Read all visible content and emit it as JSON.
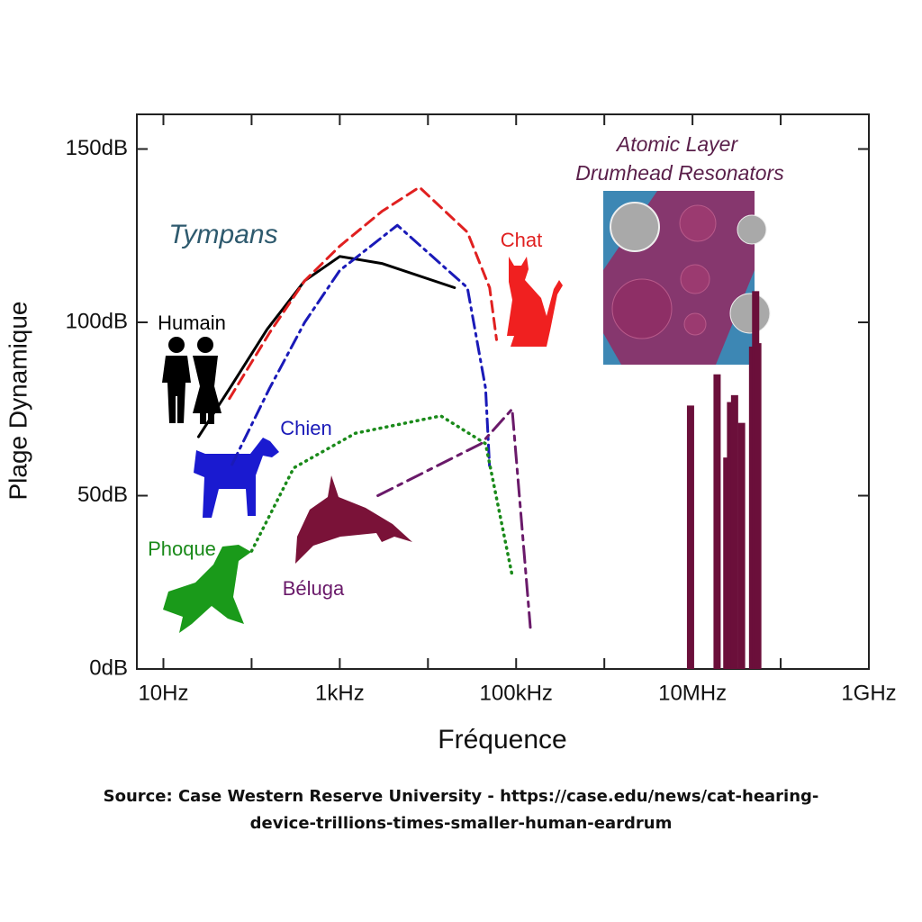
{
  "chart_data": {
    "type": "line",
    "xlabel": "Fréquence",
    "ylabel": "Plage Dynamique",
    "annotations": {
      "tympans": "Tympans",
      "inset_title": [
        "Atomic Layer",
        "Drumhead Resonators"
      ]
    },
    "source": "Source: Case Western Reserve University - https://case.edu/news/cat-hearing-device-trillions-times-smaller-human-eardrum",
    "xscale": "log",
    "xlim": [
      5,
      1000000000
    ],
    "ylim": [
      0,
      160
    ],
    "xticks": [
      {
        "value": 10,
        "label": "10Hz"
      },
      {
        "value": 1000,
        "label": "1kHz"
      },
      {
        "value": 100000,
        "label": "100kHz"
      },
      {
        "value": 10000000,
        "label": "10MHz"
      },
      {
        "value": 1000000000,
        "label": "1GHz"
      }
    ],
    "xticks_minor": [
      100,
      10000,
      1000000,
      100000000
    ],
    "yticks": [
      {
        "value": 0,
        "label": "0dB"
      },
      {
        "value": 50,
        "label": "50dB"
      },
      {
        "value": 100,
        "label": "100dB"
      },
      {
        "value": 150,
        "label": "150dB"
      }
    ],
    "series": [
      {
        "name": "Humain",
        "color": "#000000",
        "style": "solid",
        "x": [
          25,
          60,
          150,
          400,
          1000,
          3000,
          20000
        ],
        "values": [
          67,
          82,
          98,
          112,
          119,
          117,
          110
        ]
      },
      {
        "name": "Chat",
        "color": "#e02020",
        "style": "dashed",
        "x": [
          56,
          160,
          400,
          1000,
          3000,
          8000,
          28000,
          50000,
          60000
        ],
        "values": [
          78,
          97,
          112,
          122,
          132,
          139,
          126,
          110,
          95
        ]
      },
      {
        "name": "Chien",
        "color": "#1a1ab8",
        "style": "dashdot",
        "x": [
          60,
          160,
          400,
          1000,
          4500,
          28000,
          45000,
          50000
        ],
        "values": [
          59,
          81,
          100,
          115,
          128,
          110,
          81,
          58
        ]
      },
      {
        "name": "Phoque",
        "color": "#1a8a1a",
        "style": "dotted",
        "x": [
          100,
          300,
          1500,
          14000,
          45000,
          90000
        ],
        "values": [
          34,
          58,
          68,
          73,
          65,
          27
        ]
      },
      {
        "name": "Béluga",
        "color": "#6a1a6a",
        "style": "longdash",
        "x": [
          2700,
          40000,
          90000,
          145000
        ],
        "values": [
          50,
          65,
          75,
          12
        ]
      }
    ],
    "bars": {
      "color": "#6b0f3a",
      "x": [
        9500000,
        19000000,
        24500000,
        27000000,
        30000000,
        36000000,
        48000000,
        52000000,
        55000000
      ],
      "values": [
        76,
        85,
        61,
        77,
        79,
        71,
        93,
        109,
        94
      ]
    }
  }
}
